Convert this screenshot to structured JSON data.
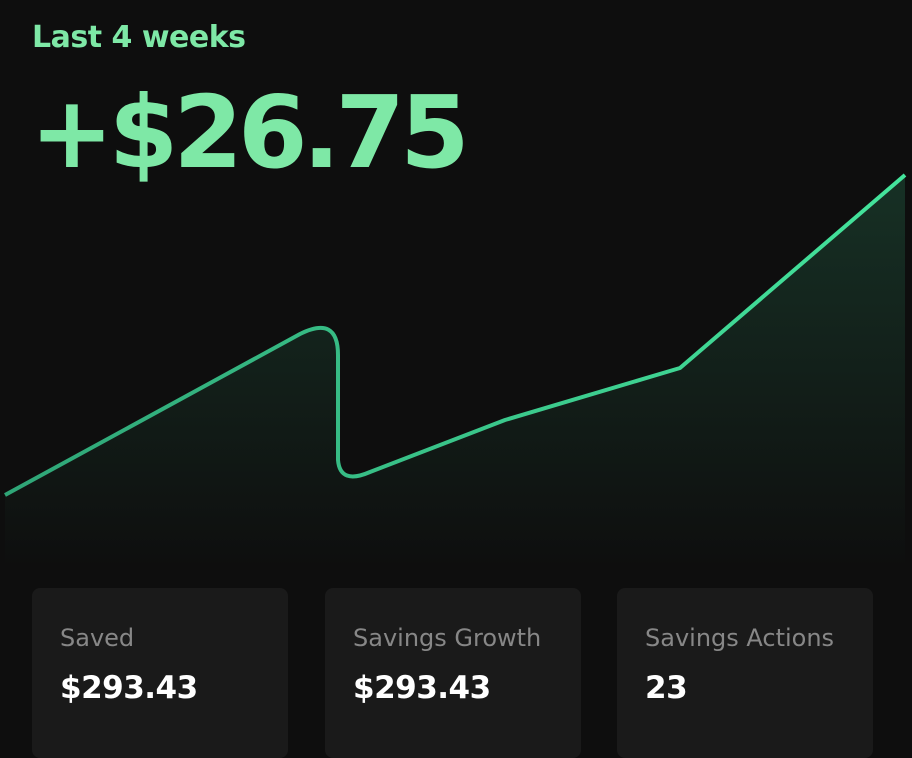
{
  "header": {
    "label": "Last 4 weeks",
    "amount": "+$26.75"
  },
  "stats": [
    {
      "label": "Saved",
      "value": "$293.43"
    },
    {
      "label": "Savings Growth",
      "value": "$293.43"
    },
    {
      "label": "Savings Actions",
      "value": "23"
    }
  ]
}
